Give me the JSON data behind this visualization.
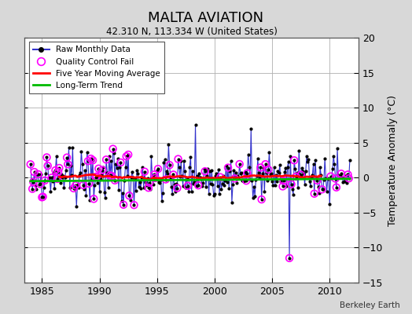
{
  "title": "MALTA AVIATION",
  "subtitle": "42.310 N, 113.334 W (United States)",
  "ylabel": "Temperature Anomaly (°C)",
  "credit": "Berkeley Earth",
  "ylim": [
    -15,
    20
  ],
  "yticks": [
    -15,
    -10,
    -5,
    0,
    5,
    10,
    15,
    20
  ],
  "xlim": [
    1983.5,
    2012.5
  ],
  "xticks": [
    1985,
    1990,
    1995,
    2000,
    2005,
    2010
  ],
  "bg_color": "#d8d8d8",
  "plot_bg_color": "#ffffff",
  "grid_color": "#b0b0b0",
  "raw_line_color": "#3333cc",
  "raw_marker_color": "#000000",
  "qc_fail_color": "#ff00ff",
  "moving_avg_color": "#ff0000",
  "trend_color": "#00bb00",
  "seed": 42
}
